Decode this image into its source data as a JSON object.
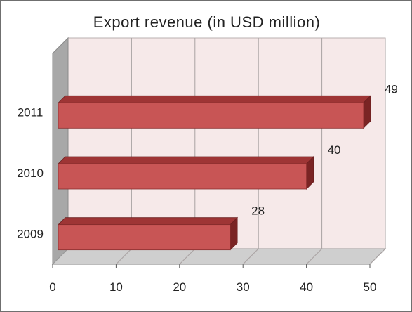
{
  "chart_data": {
    "type": "bar",
    "orientation": "horizontal",
    "style": "3d",
    "title": "Export revenue (in USD million)",
    "categories": [
      "2009",
      "2010",
      "2011"
    ],
    "values": [
      28,
      40,
      49
    ],
    "data_labels": [
      "28",
      "40",
      "49"
    ],
    "x_ticks": [
      "0",
      "10",
      "20",
      "30",
      "40",
      "50"
    ],
    "xlim": [
      0,
      50
    ],
    "xlabel": "",
    "ylabel": "",
    "grid": true,
    "legend": "none",
    "colors": {
      "bar_front": "#c85555",
      "bar_top": "#9e3535",
      "bar_side": "#7a2424",
      "back_wall": "#f6e9e9",
      "side_wall": "#a8a8a8",
      "floor": "#cfcfcf"
    }
  }
}
